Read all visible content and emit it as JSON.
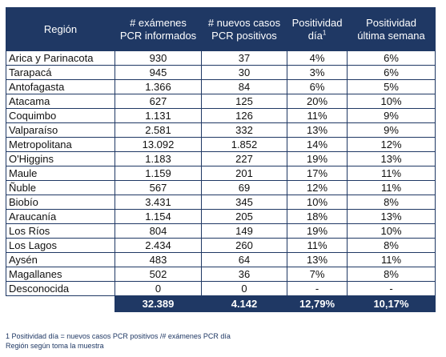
{
  "header": {
    "region": "Región",
    "examenes_line1": "# exámenes",
    "examenes_line2": "PCR informados",
    "nuevos_line1": "# nuevos casos",
    "nuevos_line2": "PCR positivos",
    "pos_dia_line1": "Positividad",
    "pos_dia_line2": "día",
    "pos_dia_sup": "1",
    "pos_sem_line1": "Positividad",
    "pos_sem_line2": "última semana"
  },
  "rows": [
    {
      "region": "Arica y Parinacota",
      "examenes": "930",
      "nuevos": "37",
      "pos_dia": "4%",
      "pos_sem": "6%"
    },
    {
      "region": "Tarapacá",
      "examenes": "945",
      "nuevos": "30",
      "pos_dia": "3%",
      "pos_sem": "6%"
    },
    {
      "region": "Antofagasta",
      "examenes": "1.366",
      "nuevos": "84",
      "pos_dia": "6%",
      "pos_sem": "5%"
    },
    {
      "region": "Atacama",
      "examenes": "627",
      "nuevos": "125",
      "pos_dia": "20%",
      "pos_sem": "10%"
    },
    {
      "region": "Coquimbo",
      "examenes": "1.131",
      "nuevos": "126",
      "pos_dia": "11%",
      "pos_sem": "9%"
    },
    {
      "region": "Valparaíso",
      "examenes": "2.581",
      "nuevos": "332",
      "pos_dia": "13%",
      "pos_sem": "9%"
    },
    {
      "region": "Metropolitana",
      "examenes": "13.092",
      "nuevos": "1.852",
      "pos_dia": "14%",
      "pos_sem": "12%"
    },
    {
      "region": "O'Higgins",
      "examenes": "1.183",
      "nuevos": "227",
      "pos_dia": "19%",
      "pos_sem": "13%"
    },
    {
      "region": "Maule",
      "examenes": "1.159",
      "nuevos": "201",
      "pos_dia": "17%",
      "pos_sem": "11%"
    },
    {
      "region": "Ñuble",
      "examenes": "567",
      "nuevos": "69",
      "pos_dia": "12%",
      "pos_sem": "11%"
    },
    {
      "region": "Biobío",
      "examenes": "3.431",
      "nuevos": "345",
      "pos_dia": "10%",
      "pos_sem": "8%"
    },
    {
      "region": "Araucanía",
      "examenes": "1.154",
      "nuevos": "205",
      "pos_dia": "18%",
      "pos_sem": "13%"
    },
    {
      "region": "Los Ríos",
      "examenes": "804",
      "nuevos": "149",
      "pos_dia": "19%",
      "pos_sem": "10%"
    },
    {
      "region": "Los Lagos",
      "examenes": "2.434",
      "nuevos": "260",
      "pos_dia": "11%",
      "pos_sem": "8%"
    },
    {
      "region": "Aysén",
      "examenes": "483",
      "nuevos": "64",
      "pos_dia": "13%",
      "pos_sem": "11%"
    },
    {
      "region": "Magallanes",
      "examenes": "502",
      "nuevos": "36",
      "pos_dia": "7%",
      "pos_sem": "8%"
    },
    {
      "region": "Desconocida",
      "examenes": "0",
      "nuevos": "0",
      "pos_dia": "-",
      "pos_sem": "-"
    }
  ],
  "totals": {
    "examenes": "32.389",
    "nuevos": "4.142",
    "pos_dia": "12,79%",
    "pos_sem": "10,17%"
  },
  "notes": {
    "line1": "1 Positividad día = nuevos casos PCR positivos /# exámenes PCR día",
    "line2": "Región según toma la muestra"
  },
  "colors": {
    "header_bg": "#1f3864",
    "header_text": "#ffffff"
  }
}
